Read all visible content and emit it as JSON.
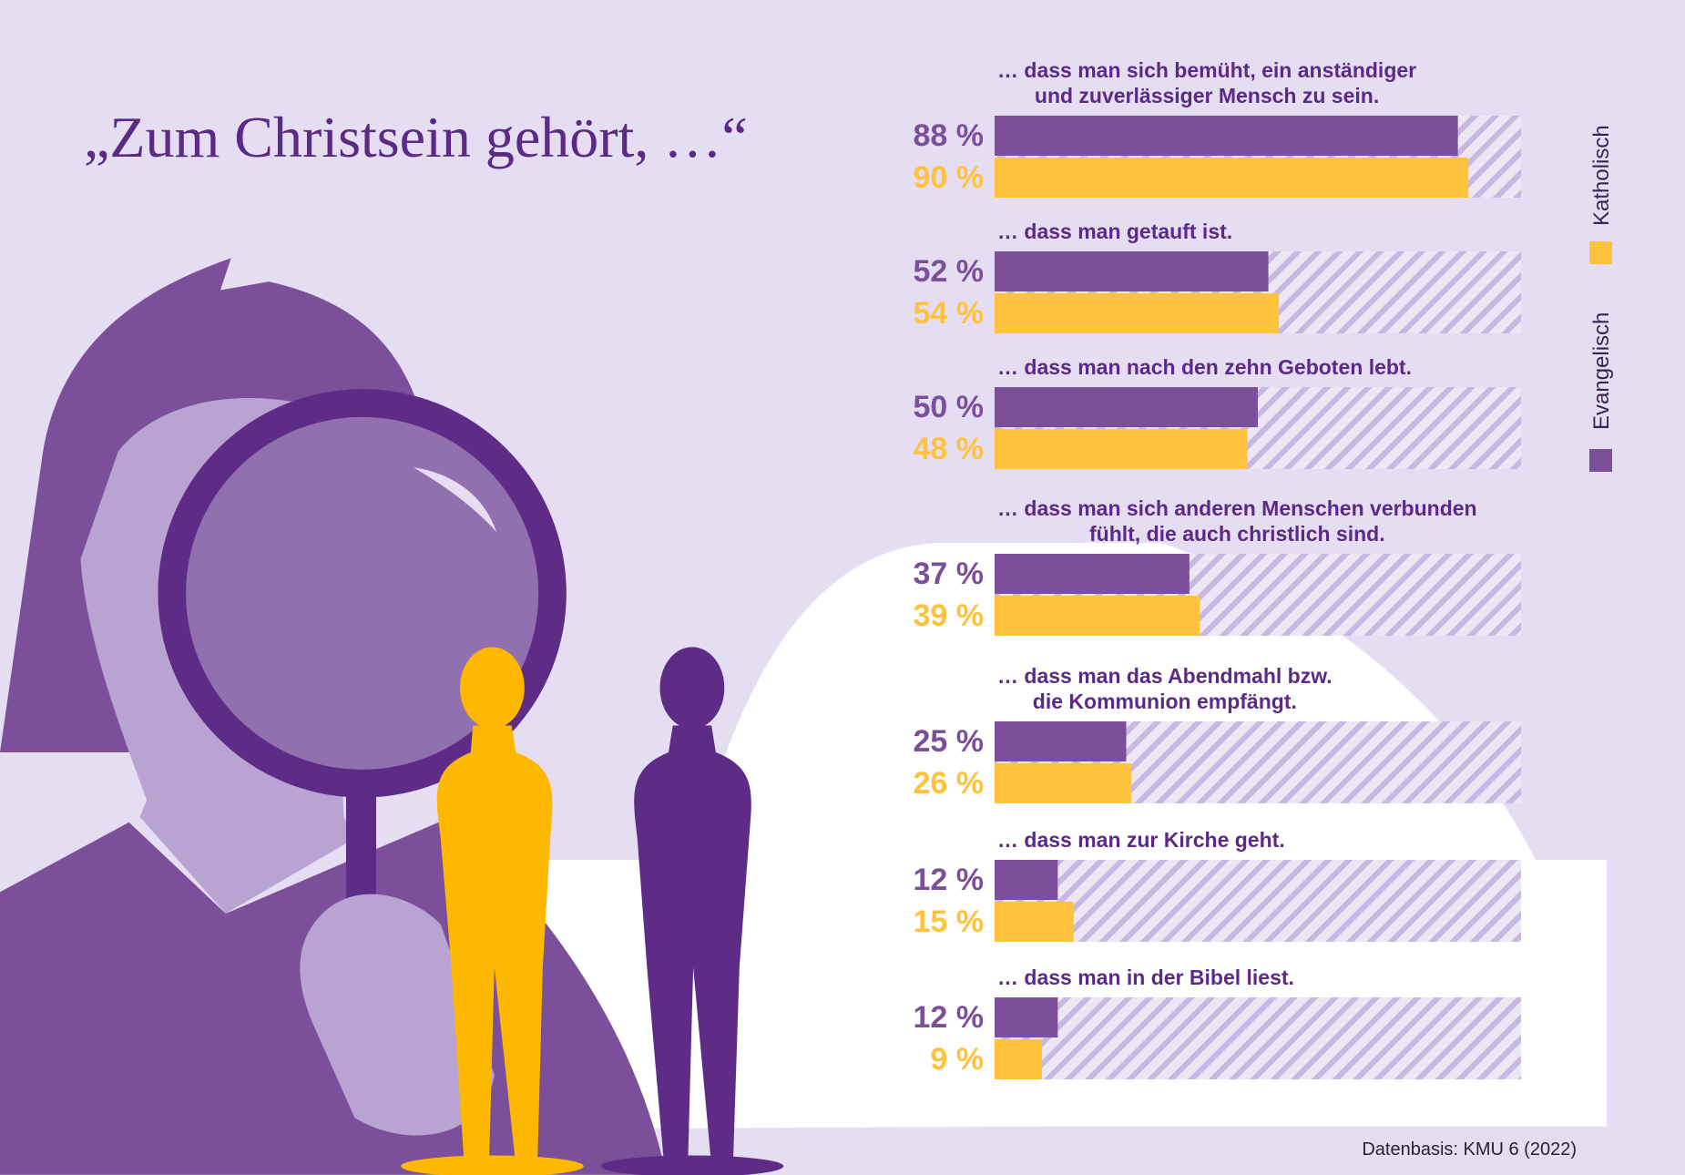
{
  "chart_data": {
    "type": "bar",
    "orientation": "horizontal",
    "title": "„Zum Christsein gehört, …“",
    "source": "Datenbasis: KMU 6 (2022)",
    "categories": [
      "… dass man sich bemüht, ein anständiger\nund zuverlässiger Mensch zu sein.",
      "… dass man getauft ist.",
      "… dass man nach den zehn Geboten lebt.",
      "… dass man sich anderen Menschen verbunden\nfühlt, die auch christlich sind.",
      "… dass man das Abendmahl bzw.\ndie Kommunion empfängt.",
      "… dass man zur Kirche geht.",
      "… dass man in der Bibel liest."
    ],
    "xlim": [
      0,
      100
    ],
    "series": [
      {
        "name": "Evangelisch",
        "color": "#7b4f9a",
        "values": [
          88,
          52,
          50,
          37,
          25,
          12,
          12
        ],
        "value_labels": [
          "88 %",
          "52 %",
          "50 %",
          "37 %",
          "25 %",
          "12 %",
          "12 %"
        ]
      },
      {
        "name": "Katholisch",
        "color": "#ffc23d",
        "values": [
          90,
          54,
          48,
          39,
          26,
          15,
          9
        ],
        "value_labels": [
          "90 %",
          "54 %",
          "48 %",
          "39 %",
          "26 %",
          "15 %",
          "9 %"
        ]
      }
    ],
    "legend": "right"
  }
}
